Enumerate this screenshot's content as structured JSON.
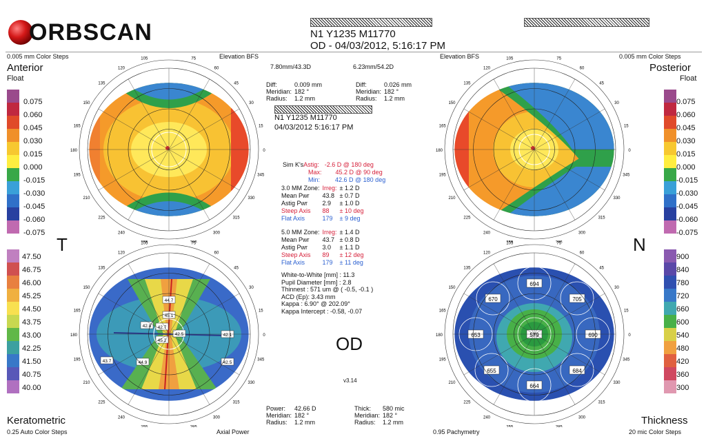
{
  "header": {
    "logo_text": "ORBSCAN",
    "patient_line": "N1 Y1235 M11770",
    "exam_line": "OD - 04/03/2012, 5:16:17 PM"
  },
  "top_left": {
    "steps": "0.005 mm Color Steps",
    "map": "Elevation BFS",
    "name": "Anterior",
    "sub": "Float"
  },
  "top_right": {
    "map": "Elevation BFS",
    "steps": "0.005 mm Color Steps",
    "name": "Posterior",
    "sub": "Float"
  },
  "bottom_left": {
    "name": "Keratometric",
    "steps": "0.25 Auto Color Steps",
    "map": "Axial Power"
  },
  "bottom_right": {
    "name": "Thickness",
    "steps": "0.95 Pachymetry",
    "map": "20 mic Color Steps"
  },
  "center": {
    "bfs_anterior": "7.80mm/43.3D",
    "bfs_posterior": "6.23mm/54.2D",
    "ant_diff": {
      "l1": "Diff:",
      "v1": "0.009 mm",
      "l2": "Meridian:",
      "v2": "182 °",
      "l3": "Radius:",
      "v3": "1.2 mm"
    },
    "post_diff": {
      "l1": "Diff:",
      "v1": "0.026 mm",
      "l2": "Meridian:",
      "v2": "182 °",
      "l3": "Radius:",
      "v3": "1.2 mm"
    },
    "patient2": "N1 Y1235 M11770",
    "date2": "04/03/2012 5:16:17 PM",
    "simk_label": "Sim K's",
    "astig": "Astig:",
    "astig_v": "-2.6 D  @ 180 deg",
    "max": "Max:",
    "max_v": "45.2 D  @ 90 deg",
    "min": "Min:",
    "min_v": "42.6 D  @ 180 deg",
    "z3": {
      "head": "3.0 MM Zone:",
      "irreg": "Irreg:",
      "irreg_v": "± 1.2 D",
      "mean": "Mean Pwr",
      "mean_v": "43.8",
      "mean_e": "± 0.7 D",
      "astig": "Astig Pwr",
      "astig_v": "2.9",
      "astig_e": "± 1.0 D",
      "steep": "Steep Axis",
      "steep_v": "88",
      "steep_e": "± 10 deg",
      "flat": "Flat Axis",
      "flat_v": "179",
      "flat_e": "±  9 deg"
    },
    "z5": {
      "head": "5.0 MM Zone:",
      "irreg": "Irreg:",
      "irreg_v": "± 1.4 D",
      "mean": "Mean Pwr",
      "mean_v": "43.7",
      "mean_e": "± 0.8 D",
      "astig": "Astig Pwr",
      "astig_v": "3.0",
      "astig_e": "± 1.1 D",
      "steep": "Steep Axis",
      "steep_v": "89",
      "steep_e": "± 12 deg",
      "flat": "Flat Axis",
      "flat_v": "179",
      "flat_e": "± 11 deg"
    },
    "wtw": "White-to-White [mm] : 11.3",
    "pupil": "Pupil Diameter [mm] :  2.8",
    "thinnest": "Thinnest : 571 um @ ( -0.5, -0.1 )",
    "acd": "ACD (Ep): 3.43 mm",
    "kappa": "Kappa : 6.90° @ 202.09°",
    "kappa_int": "Kappa Intercept : -0.58, -0.07",
    "eye": "OD",
    "version": "v3.14",
    "power": {
      "l1": "Power:",
      "v1": "42.66 D",
      "l2": "Meridian:",
      "v2": "182 °",
      "l3": "Radius:",
      "v3": "1.2 mm"
    },
    "thick": {
      "l1": "Thick:",
      "v1": "580 mic",
      "l2": "Meridian:",
      "v2": "182 °",
      "l3": "Radius:",
      "v3": "1.2 mm"
    }
  },
  "side_T": "T",
  "side_N": "N",
  "float_scale": [
    "0.075",
    "0.060",
    "0.045",
    "0.030",
    "0.015",
    "0.000",
    "-0.015",
    "-0.030",
    "-0.045",
    "-0.060",
    "-0.075"
  ],
  "float_scale_right": [
    "0.075",
    "0.060",
    "0.045",
    "0.030",
    "0.015",
    "0.000",
    "-0.015",
    "-0.030",
    "-0.045",
    "-0.060",
    "-0.075"
  ],
  "kerato_scale": [
    "47.50",
    "46.75",
    "46.00",
    "45.25",
    "44.50",
    "43.75",
    "43.00",
    "42.25",
    "41.50",
    "40.75",
    "40.00"
  ],
  "thick_scale": [
    "900",
    "840",
    "780",
    "720",
    "660",
    "600",
    "540",
    "480",
    "420",
    "360",
    "300"
  ],
  "axis_labels": [
    "90",
    "105",
    "120",
    "135",
    "150",
    "165",
    "180",
    "195",
    "210",
    "225",
    "240",
    "255",
    "270",
    "285",
    "300",
    "315",
    "330",
    "345",
    "0",
    "15",
    "30",
    "45",
    "60",
    "75"
  ],
  "kerato_values": [
    "44.7",
    "45.1",
    "42.8",
    "42.7",
    "42.5",
    "45.2",
    "42.1",
    "43.7",
    "44.9",
    "42.5"
  ],
  "pachy_values": [
    "694",
    "670",
    "705",
    "653",
    "579",
    "690",
    "655",
    "684",
    "664"
  ],
  "colors": {
    "red": "#d6203a",
    "blue": "#2a5fd0"
  }
}
